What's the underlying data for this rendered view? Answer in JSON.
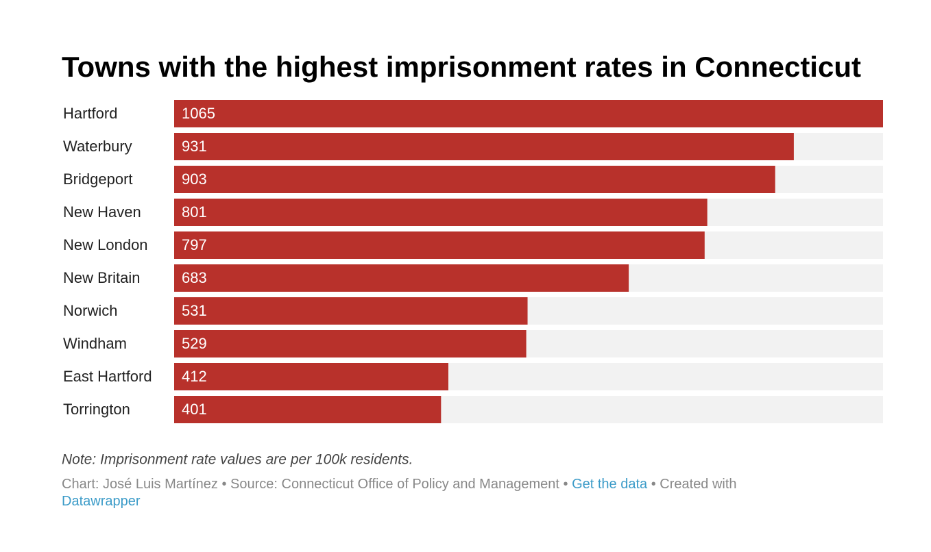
{
  "chart_data": {
    "type": "bar",
    "orientation": "horizontal",
    "title": "Towns with the highest imprisonment rates in Connecticut",
    "categories": [
      "Hartford",
      "Waterbury",
      "Bridgeport",
      "New Haven",
      "New London",
      "New Britain",
      "Norwich",
      "Windham",
      "East Hartford",
      "Torrington"
    ],
    "values": [
      1065,
      931,
      903,
      801,
      797,
      683,
      531,
      529,
      412,
      401
    ],
    "color": "#b8312b",
    "track_color": "#f2f2f2",
    "xlim": [
      0,
      1065
    ],
    "note": "Note: Imprisonment rate values are per 100k residents.",
    "footer": {
      "credit": "Chart: José Luis Martínez",
      "separator": "•",
      "source": "Source: Connecticut Office of Policy and Management",
      "get_data": "Get the data",
      "created_with": "Created with",
      "tool": "Datawrapper"
    }
  }
}
